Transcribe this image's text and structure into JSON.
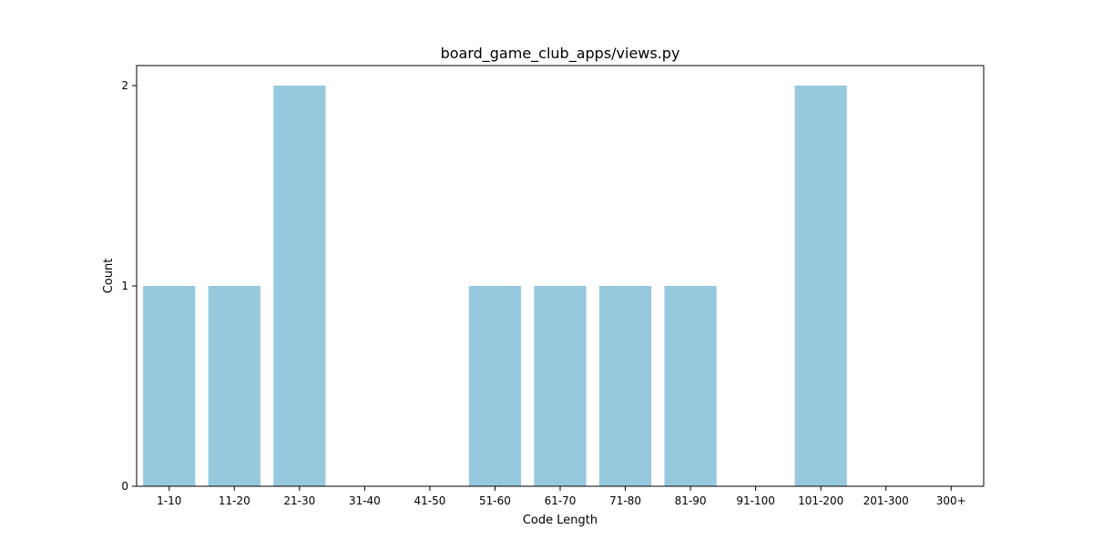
{
  "chart_data": {
    "type": "bar",
    "title": "board_game_club_apps/views.py",
    "xlabel": "Code Length",
    "ylabel": "Count",
    "categories": [
      "1-10",
      "11-20",
      "21-30",
      "31-40",
      "41-50",
      "51-60",
      "61-70",
      "71-80",
      "81-90",
      "91-100",
      "101-200",
      "201-300",
      "300+"
    ],
    "values": [
      1,
      1,
      2,
      0,
      0,
      1,
      1,
      1,
      1,
      0,
      2,
      0,
      0
    ],
    "yticks": [
      "0",
      "1",
      "2"
    ],
    "ylim": [
      0,
      2.1
    ],
    "grid": false,
    "bar_color": "#96c9de"
  }
}
